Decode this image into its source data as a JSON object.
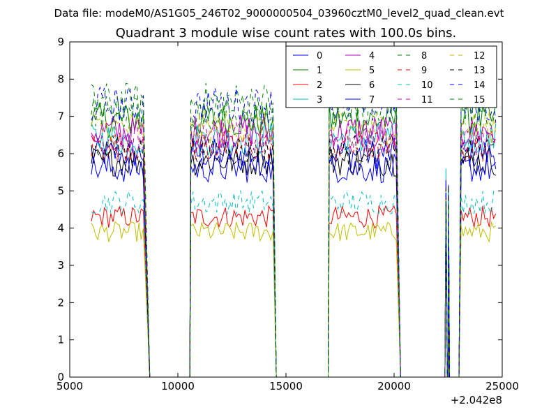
{
  "header": {
    "data_file": "Data file: modeM0/AS1G05_246T02_9000000504_03960cztM0_level2_quad_clean.evt"
  },
  "chart_data": {
    "type": "line",
    "title": "Quadrant 3 module wise count rates with 100.0s bins.",
    "xlabel": "",
    "ylabel": "",
    "x_offset_label": "+2.042e8",
    "xlim": [
      5000,
      25000
    ],
    "ylim": [
      0,
      9
    ],
    "xticks": [
      5000,
      10000,
      15000,
      20000,
      25000
    ],
    "yticks": [
      0,
      1,
      2,
      3,
      4,
      5,
      6,
      7,
      8,
      9
    ],
    "grid": false,
    "legend_position": "top-right",
    "legend_columns": 4,
    "segments": [
      {
        "x0": 6000,
        "x1": 8400,
        "drop_to": 8700
      },
      {
        "x0": 10600,
        "x1": 14400,
        "rise_from": 10550,
        "drop_to": 14550
      },
      {
        "x0": 17000,
        "x1": 20100,
        "rise_from": 16950,
        "drop_to": 20300
      },
      {
        "x0": 23100,
        "x1": 24700,
        "rise_from": 23000
      }
    ],
    "spike": {
      "x": 22400,
      "values_note_hidden": true
    },
    "series": [
      {
        "name": "0",
        "color": "#0000ff",
        "style": "solid",
        "level": 6.0
      },
      {
        "name": "1",
        "color": "#008000",
        "style": "solid",
        "level": 6.9
      },
      {
        "name": "2",
        "color": "#ff0000",
        "style": "solid",
        "level": 4.3
      },
      {
        "name": "3",
        "color": "#00bfbf",
        "style": "solid",
        "level": 6.4
      },
      {
        "name": "4",
        "color": "#bf00bf",
        "style": "solid",
        "level": 6.6
      },
      {
        "name": "5",
        "color": "#bfbf00",
        "style": "solid",
        "level": 3.9
      },
      {
        "name": "6",
        "color": "#000000",
        "style": "solid",
        "level": 5.8
      },
      {
        "name": "7",
        "color": "#0000ff",
        "style": "solid",
        "level": 5.6
      },
      {
        "name": "8",
        "color": "#008000",
        "style": "dashed",
        "level": 7.4
      },
      {
        "name": "9",
        "color": "#ff0000",
        "style": "dashed",
        "level": 6.2
      },
      {
        "name": "10",
        "color": "#00bfbf",
        "style": "dashed",
        "level": 4.7
      },
      {
        "name": "11",
        "color": "#bf00bf",
        "style": "dashed",
        "level": 6.4
      },
      {
        "name": "12",
        "color": "#bfbf00",
        "style": "dashed",
        "level": 6.7
      },
      {
        "name": "13",
        "color": "#000000",
        "style": "dashed",
        "level": 6.1
      },
      {
        "name": "14",
        "color": "#0000ff",
        "style": "dashed",
        "level": 7.3
      },
      {
        "name": "15",
        "color": "#008000",
        "style": "dashed",
        "level": 7.1
      }
    ]
  }
}
